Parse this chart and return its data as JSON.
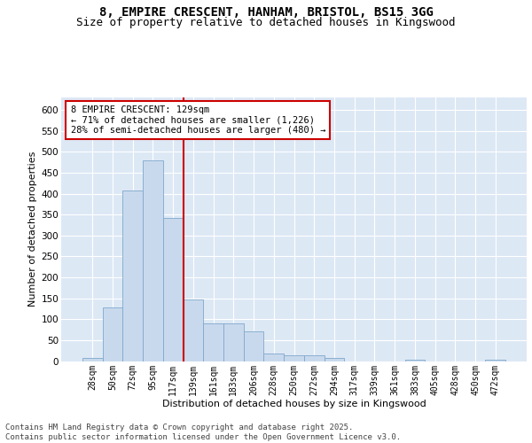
{
  "title_line1": "8, EMPIRE CRESCENT, HANHAM, BRISTOL, BS15 3GG",
  "title_line2": "Size of property relative to detached houses in Kingswood",
  "xlabel": "Distribution of detached houses by size in Kingswood",
  "ylabel": "Number of detached properties",
  "bar_color": "#c9d9ed",
  "bar_edge_color": "#7fa8cc",
  "background_color": "#dde8f5",
  "grid_color": "#ffffff",
  "annotation_box_color": "#cc0000",
  "vline_color": "#cc0000",
  "categories": [
    "28sqm",
    "50sqm",
    "72sqm",
    "95sqm",
    "117sqm",
    "139sqm",
    "161sqm",
    "183sqm",
    "206sqm",
    "228sqm",
    "250sqm",
    "272sqm",
    "294sqm",
    "317sqm",
    "339sqm",
    "361sqm",
    "383sqm",
    "405sqm",
    "428sqm",
    "450sqm",
    "472sqm"
  ],
  "values": [
    8,
    128,
    408,
    480,
    343,
    148,
    90,
    90,
    70,
    17,
    13,
    13,
    7,
    0,
    0,
    0,
    4,
    0,
    0,
    0,
    4
  ],
  "vline_position": 4.5,
  "annotation_text_line1": "8 EMPIRE CRESCENT: 129sqm",
  "annotation_text_line2": "← 71% of detached houses are smaller (1,226)",
  "annotation_text_line3": "28% of semi-detached houses are larger (480) →",
  "ylim": [
    0,
    630
  ],
  "yticks": [
    0,
    50,
    100,
    150,
    200,
    250,
    300,
    350,
    400,
    450,
    500,
    550,
    600
  ],
  "footnote": "Contains HM Land Registry data © Crown copyright and database right 2025.\nContains public sector information licensed under the Open Government Licence v3.0.",
  "title_fontsize": 10,
  "subtitle_fontsize": 9,
  "axis_label_fontsize": 8,
  "tick_fontsize": 7,
  "annotation_fontsize": 7.5,
  "footnote_fontsize": 6.5
}
